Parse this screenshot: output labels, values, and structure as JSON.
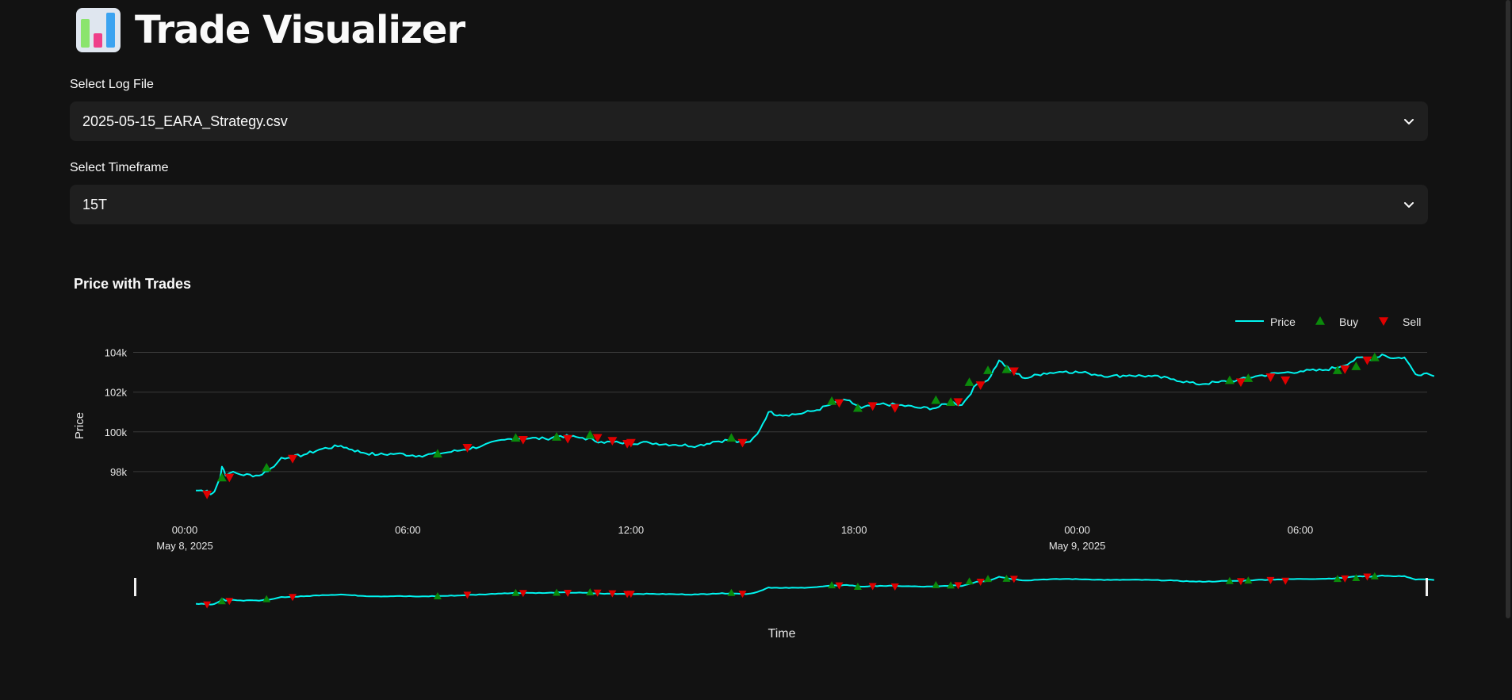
{
  "app": {
    "title": "Trade Visualizer",
    "icon": "bar-chart-icon"
  },
  "controls": {
    "log_file_label": "Select Log File",
    "log_file_value": "2025-05-15_EARA_Strategy.csv",
    "timeframe_label": "Select Timeframe",
    "timeframe_value": "15T"
  },
  "chart_section": {
    "title": "Price with Trades"
  },
  "colors": {
    "background": "#121212",
    "price": "#00f5f0",
    "buy": "#0b8a0b",
    "sell": "#e00000",
    "grid": "#3a3a3a"
  },
  "chart_data": {
    "type": "line",
    "title": "Price with Trades",
    "xlabel": "Time",
    "ylabel": "Price",
    "ylim": [
      96200,
      104500
    ],
    "y_ticks": [
      "98k",
      "100k",
      "102k",
      "104k"
    ],
    "y_tick_values": [
      98000,
      100000,
      102000,
      104000
    ],
    "x_ticks": [
      {
        "time": "00:00",
        "date": "May 8, 2025",
        "hours": 0
      },
      {
        "time": "06:00",
        "date": "",
        "hours": 6
      },
      {
        "time": "12:00",
        "date": "",
        "hours": 12
      },
      {
        "time": "18:00",
        "date": "",
        "hours": 18
      },
      {
        "time": "00:00",
        "date": "May 9, 2025",
        "hours": 24
      },
      {
        "time": "06:00",
        "date": "",
        "hours": 30
      }
    ],
    "xlim_hours": [
      -0.3,
      33.9
    ],
    "legend": [
      "Price",
      "Buy",
      "Sell"
    ],
    "legend_position": "top-right",
    "range_slider": true,
    "series": [
      {
        "name": "Price",
        "hours_since_may8_0000": [
          0.3,
          0.6,
          0.7,
          0.8,
          0.95,
          1.0,
          1.1,
          1.3,
          1.5,
          2.0,
          2.4,
          2.6,
          2.8,
          3.2,
          3.7,
          4.2,
          4.5,
          4.8,
          5.2,
          5.7,
          6.3,
          7.0,
          7.5,
          8.0,
          8.6,
          9.1,
          9.7,
          10.1,
          10.7,
          11.2,
          11.7,
          12.5,
          13.2,
          13.8,
          14.2,
          14.7,
          15.0,
          15.2,
          15.4,
          15.7,
          16.0,
          16.5,
          17.0,
          17.4,
          17.8,
          18.2,
          18.7,
          19.2,
          19.8,
          20.2,
          20.6,
          20.9,
          21.3,
          21.6,
          21.9,
          22.2,
          22.6,
          23.1,
          23.7,
          24.3,
          24.9,
          25.4,
          26.0,
          26.6,
          27.2,
          27.8,
          28.3,
          28.8,
          29.4,
          30.0,
          30.6,
          31.1,
          31.6,
          31.9,
          32.2,
          32.5,
          32.8,
          33.1,
          33.4,
          33.6
        ],
        "values": [
          97050,
          97050,
          96850,
          97000,
          97700,
          98250,
          97800,
          98000,
          97850,
          97800,
          98250,
          98700,
          98700,
          98850,
          99150,
          99300,
          99100,
          98950,
          98850,
          98900,
          98800,
          98950,
          99100,
          99300,
          99600,
          99700,
          99650,
          99800,
          99700,
          99500,
          99450,
          99450,
          99350,
          99300,
          99500,
          99600,
          99400,
          99500,
          99900,
          101000,
          100850,
          100900,
          101100,
          101400,
          101600,
          101200,
          101400,
          101350,
          101200,
          101200,
          101500,
          101350,
          102400,
          102600,
          103600,
          103100,
          102700,
          102950,
          103050,
          102950,
          102800,
          102850,
          102800,
          102650,
          102400,
          102500,
          102600,
          102800,
          102950,
          103050,
          103100,
          103300,
          103750,
          103600,
          103900,
          103700,
          103750,
          102900,
          102950,
          102800
        ]
      }
    ],
    "buy_trades": {
      "hours": [
        1.0,
        2.2,
        6.8,
        8.9,
        10.0,
        10.9,
        14.7,
        17.4,
        18.1,
        20.2,
        20.6,
        21.1,
        21.6,
        22.1,
        28.1,
        28.6,
        31.0,
        31.5,
        32.0
      ],
      "values": [
        97700,
        98200,
        98900,
        99700,
        99750,
        99850,
        99700,
        101550,
        101200,
        101600,
        101500,
        102500,
        103100,
        103150,
        102600,
        102700,
        103100,
        103300,
        103750
      ]
    },
    "sell_trades": {
      "hours": [
        0.6,
        1.2,
        2.9,
        7.6,
        9.1,
        10.3,
        11.1,
        11.5,
        11.9,
        12.0,
        15.0,
        17.6,
        18.5,
        19.1,
        20.8,
        21.4,
        22.3,
        28.4,
        29.2,
        29.6,
        31.2,
        31.8
      ],
      "values": [
        96850,
        97700,
        98650,
        99200,
        99600,
        99650,
        99700,
        99550,
        99400,
        99450,
        99450,
        101450,
        101300,
        101200,
        101500,
        102350,
        103050,
        102500,
        102750,
        102600,
        103150,
        103600
      ]
    }
  }
}
